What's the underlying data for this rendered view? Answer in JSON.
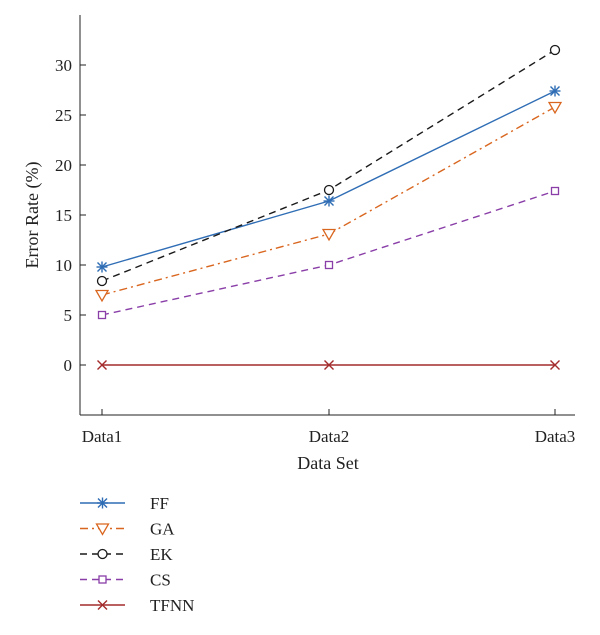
{
  "chart_data": {
    "type": "line",
    "title": "",
    "xlabel": "Data Set",
    "ylabel": "Error Rate (%)",
    "categories": [
      "Data1",
      "Data2",
      "Data3"
    ],
    "ylim": [
      -5,
      35
    ],
    "yticks": [
      0,
      5,
      10,
      15,
      20,
      25,
      30
    ],
    "grid": false,
    "legend_position": "below",
    "series": [
      {
        "name": "FF",
        "values": [
          9.8,
          16.4,
          27.4
        ],
        "color": "#2f6db5",
        "dash": "solid",
        "marker": "asterisk"
      },
      {
        "name": "GA",
        "values": [
          7.0,
          13.1,
          25.8
        ],
        "color": "#d9661f",
        "dash": "dash-dot",
        "marker": "triangle-down"
      },
      {
        "name": "EK",
        "values": [
          8.4,
          17.5,
          31.5
        ],
        "color": "#1a1a1a",
        "dash": "dashed",
        "marker": "circle"
      },
      {
        "name": "CS",
        "values": [
          5.0,
          10.0,
          17.4
        ],
        "color": "#8a3fa8",
        "dash": "dashed",
        "marker": "square"
      },
      {
        "name": "TFNN",
        "values": [
          0.0,
          0.0,
          0.0
        ],
        "color": "#a32c2c",
        "dash": "solid",
        "marker": "x"
      }
    ]
  }
}
